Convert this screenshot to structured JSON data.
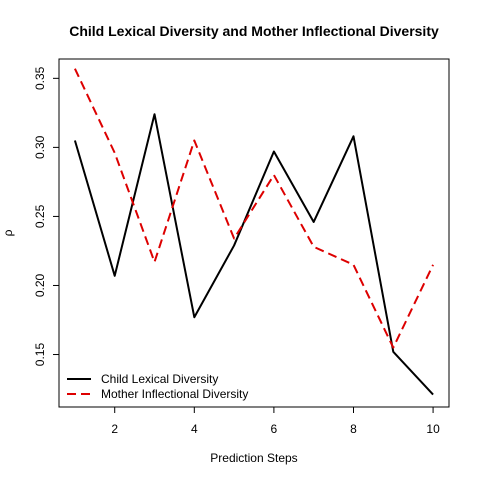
{
  "chart_data": {
    "type": "line",
    "title": "Child Lexical Diversity and Mother Inflectional Diversity",
    "xlabel": "Prediction Steps",
    "ylabel": "ρ",
    "x": [
      1,
      2,
      3,
      4,
      5,
      6,
      7,
      8,
      9,
      10
    ],
    "xlim": [
      0.6,
      10.4
    ],
    "ylim": [
      0.112,
      0.364
    ],
    "xticks": [
      2,
      4,
      6,
      8,
      10
    ],
    "xtick_labels": [
      "2",
      "4",
      "6",
      "8",
      "10"
    ],
    "yticks": [
      0.15,
      0.2,
      0.25,
      0.3,
      0.35
    ],
    "ytick_labels": [
      "0.15",
      "0.20",
      "0.25",
      "0.30",
      "0.35"
    ],
    "grid": false,
    "legend_position": "bottom-left",
    "series": [
      {
        "name": "Child Lexical Diversity",
        "color": "#000000",
        "dash": "solid",
        "values": [
          0.305,
          0.207,
          0.324,
          0.177,
          0.229,
          0.297,
          0.246,
          0.308,
          0.152,
          0.121
        ]
      },
      {
        "name": "Mother Inflectional Diversity",
        "color": "#dd0000",
        "dash": "dashed",
        "values": [
          0.357,
          0.296,
          0.217,
          0.305,
          0.234,
          0.28,
          0.228,
          0.215,
          0.155,
          0.215
        ]
      }
    ]
  }
}
